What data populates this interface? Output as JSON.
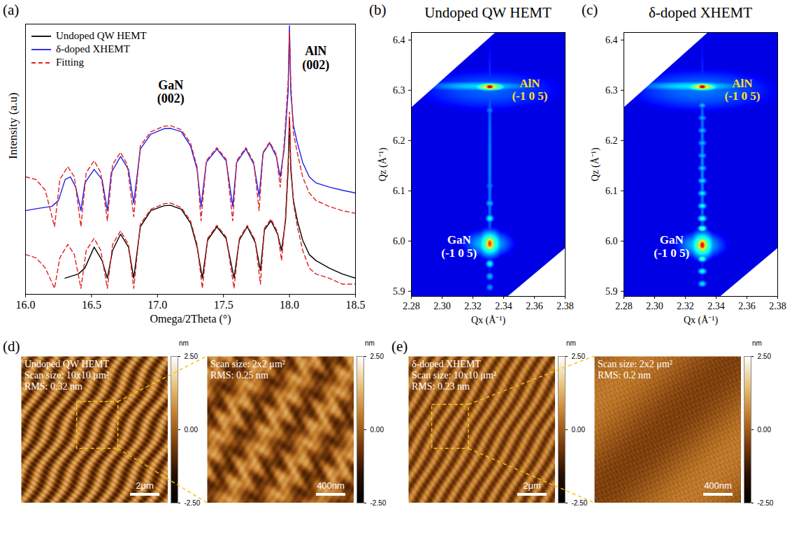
{
  "chart_data": [
    {
      "panel": "(a)",
      "type": "line",
      "xlabel": "Omega/2Theta (°)",
      "ylabel": "Intensity (a.u)",
      "log": "y",
      "tick_labels": "x",
      "legend": "upper left",
      "xlim": [
        16,
        18.5
      ],
      "xticks": [
        {
          "value": 16,
          "label": "16.0"
        },
        16.5,
        {
          "value": 17,
          "label": "17.0"
        },
        17.5,
        {
          "value": 18,
          "label": "18.0"
        },
        18.5
      ],
      "ylim": [
        1,
        100000000
      ],
      "yticks": [],
      "series": [
        {
          "name": "Undoped QW HEMT",
          "color": "#000000",
          "line_style": "solid",
          "x": [
            16.3,
            16.4,
            16.45,
            16.52,
            16.58,
            16.62,
            16.66,
            16.72,
            16.78,
            16.82,
            16.87,
            16.95,
            17.05,
            17.1,
            17.18,
            17.25,
            17.3,
            17.34,
            17.38,
            17.45,
            17.52,
            17.58,
            17.62,
            17.68,
            17.74,
            17.78,
            17.81,
            17.86,
            17.91,
            17.94,
            17.97,
            17.99,
            18.0,
            18.01,
            18.03,
            18.06,
            18.1,
            18.15,
            18.2,
            18.3,
            18.4,
            18.5
          ],
          "values": [
            3,
            4,
            6,
            25,
            10,
            3,
            20,
            60,
            25,
            3,
            100,
            300,
            420,
            430,
            330,
            130,
            25,
            3,
            40,
            100,
            45,
            3,
            40,
            100,
            35,
            5,
            80,
            150,
            60,
            20,
            150,
            5000,
            160000,
            5000,
            600,
            150,
            40,
            15,
            10,
            6,
            4,
            3
          ]
        },
        {
          "name": "δ-doped XHEMT",
          "color": "#1c1cf0",
          "line_style": "solid",
          "x": [
            16.0,
            16.1,
            16.2,
            16.25,
            16.3,
            16.34,
            16.38,
            16.42,
            16.45,
            16.52,
            16.58,
            16.62,
            16.65,
            16.72,
            16.78,
            16.82,
            16.87,
            16.95,
            17.05,
            17.1,
            17.18,
            17.25,
            17.3,
            17.33,
            17.37,
            17.45,
            17.52,
            17.57,
            17.6,
            17.67,
            17.73,
            17.77,
            17.8,
            17.85,
            17.9,
            17.93,
            17.96,
            17.99,
            18.0,
            18.01,
            18.03,
            18.06,
            18.1,
            18.15,
            18.2,
            18.3,
            18.4,
            18.5
          ],
          "values": [
            300,
            350,
            400,
            600,
            2500,
            3000,
            1500,
            300,
            2000,
            5000,
            2500,
            300,
            4000,
            12000,
            5000,
            500,
            20000,
            55000,
            80000,
            82000,
            65000,
            25000,
            5000,
            400,
            8000,
            20000,
            9000,
            400,
            8000,
            20000,
            7000,
            800,
            15000,
            30000,
            12000,
            3000,
            20000,
            1000000,
            90000000,
            1000000,
            100000,
            30000,
            8000,
            3000,
            2000,
            1500,
            1200,
            1000
          ]
        },
        {
          "name": "Fitting",
          "color": "#e02020",
          "line_style": "dashed",
          "x": [
            16.0,
            16.08,
            16.15,
            16.22,
            16.26,
            16.32,
            16.37,
            16.42,
            16.46,
            16.52,
            16.57,
            16.62,
            16.66,
            16.72,
            16.77,
            16.82,
            16.87,
            16.95,
            17.05,
            17.1,
            17.18,
            17.25,
            17.3,
            17.33,
            17.37,
            17.45,
            17.52,
            17.57,
            17.6,
            17.67,
            17.73,
            17.77,
            17.8,
            17.85,
            17.9,
            17.93,
            17.96,
            17.99,
            18.0,
            18.01,
            18.03,
            18.06,
            18.1,
            18.15,
            18.2,
            18.3,
            18.4,
            18.5
          ],
          "values": [
            3000,
            2500,
            1200,
            100,
            2500,
            6000,
            3000,
            100,
            4000,
            9000,
            4000,
            150,
            7000,
            16000,
            7000,
            200,
            25000,
            65000,
            95000,
            98000,
            75000,
            30000,
            6000,
            150,
            9000,
            22000,
            10000,
            150,
            9000,
            22000,
            8000,
            300,
            16000,
            32000,
            14000,
            1500,
            30000,
            2000000,
            60000000,
            2000000,
            60000,
            15000,
            3000,
            1000,
            600,
            400,
            300,
            250
          ]
        },
        {
          "name": "Fitting",
          "color": "#e02020",
          "line_style": "dashed",
          "x": [
            16.0,
            16.08,
            16.15,
            16.22,
            16.26,
            16.32,
            16.37,
            16.42,
            16.46,
            16.52,
            16.57,
            16.62,
            16.66,
            16.72,
            16.78,
            16.82,
            16.87,
            16.95,
            17.05,
            17.1,
            17.18,
            17.25,
            17.3,
            17.34,
            17.38,
            17.45,
            17.52,
            17.58,
            17.62,
            17.68,
            17.74,
            17.78,
            17.81,
            17.86,
            17.91,
            17.94,
            17.97,
            17.99,
            18.0,
            18.01,
            18.03,
            18.06,
            18.1,
            18.15,
            18.2,
            18.3,
            18.4,
            18.5
          ],
          "values": [
            15,
            12,
            6,
            1.5,
            12,
            30,
            15,
            1.5,
            20,
            45,
            20,
            1.5,
            30,
            75,
            30,
            1.5,
            120,
            330,
            480,
            500,
            370,
            150,
            30,
            1.5,
            45,
            110,
            50,
            1.5,
            45,
            110,
            40,
            2,
            90,
            170,
            70,
            10,
            200,
            8000,
            250000,
            8000,
            500,
            100,
            20,
            6,
            4,
            3,
            2,
            2
          ]
        }
      ],
      "annotations": [
        {
          "text": [
            "GaN",
            "(002)"
          ],
          "x": 17.1,
          "y": 1000000
        },
        {
          "text": [
            "AlN",
            "(002)"
          ],
          "x": 18.2,
          "y": 10000000
        }
      ]
    },
    {
      "panel": "(b)",
      "type": "heatmap",
      "title": "Undoped QW HEMT",
      "xlabel": "Qx (Å⁻¹)",
      "ylabel": "Qz (Å⁻¹)",
      "xlim": [
        2.28,
        2.38
      ],
      "xticks": [
        2.28,
        {
          "value": 2.3,
          "label": "2.30"
        },
        2.32,
        2.34,
        2.36,
        2.38
      ],
      "ylim": [
        5.89,
        6.415
      ],
      "yticks": [
        5.9,
        {
          "value": 6,
          "label": "6.0"
        },
        6.1,
        6.2,
        6.3,
        6.4
      ],
      "colorlim": [
        0,
        5
      ],
      "background_intensity": 0.5,
      "scan_edges": {
        "upper": [
          [
            2.28,
            6.265
          ],
          [
            2.335,
            6.415
          ]
        ],
        "lower": [
          [
            2.343,
            5.89
          ],
          [
            2.38,
            5.985
          ]
        ]
      },
      "spots": [
        {
          "qx": 2.33,
          "qz": 6.3,
          "dqx": 0.04,
          "dqz": 0.035,
          "intensity": 1.1
        },
        {
          "qx": 2.325,
          "qz": 6.308,
          "dqx": 0.03,
          "dqz": 0.009,
          "intensity": 1.7
        },
        {
          "qx": 2.331,
          "qz": 6.307,
          "dqx": 0.008,
          "dqz": 0.006,
          "intensity": 3.2
        },
        {
          "qx": 2.331,
          "qz": 6.307,
          "dqx": 0.0025,
          "dqz": 0.004,
          "intensity": 5
        },
        {
          "qx": 2.33,
          "qz": 5.995,
          "dqx": 0.012,
          "dqz": 0.02,
          "intensity": 1.7
        },
        {
          "qx": 2.331,
          "qz": 5.995,
          "dqx": 0.006,
          "dqz": 0.02,
          "intensity": 2.6
        },
        {
          "qx": 2.331,
          "qz": 5.995,
          "dqx": 0.0022,
          "dqz": 0.011,
          "intensity": 4.2
        },
        {
          "qx": 2.331,
          "qz": 6.15,
          "dqx": 0.0012,
          "dqz": 0.2,
          "intensity": 1.3
        },
        {
          "qx": 2.331,
          "qz": 6.045,
          "dqx": 0.002,
          "dqz": 0.006,
          "intensity": 2.0
        },
        {
          "qx": 2.331,
          "qz": 6.075,
          "dqx": 0.002,
          "dqz": 0.006,
          "intensity": 1.6
        },
        {
          "qx": 2.331,
          "qz": 6.11,
          "dqx": 0.002,
          "dqz": 0.006,
          "intensity": 1.3
        },
        {
          "qx": 2.331,
          "qz": 6.26,
          "dqx": 0.002,
          "dqz": 0.006,
          "intensity": 1.3
        },
        {
          "qx": 2.331,
          "qz": 5.955,
          "dqx": 0.002,
          "dqz": 0.006,
          "intensity": 2.0
        },
        {
          "qx": 2.331,
          "qz": 5.93,
          "dqx": 0.002,
          "dqz": 0.006,
          "intensity": 1.6
        },
        {
          "qx": 2.331,
          "qz": 5.908,
          "dqx": 0.002,
          "dqz": 0.006,
          "intensity": 1.4
        }
      ],
      "annotations": [
        {
          "text": [
            "AlN",
            "(-1 0 5)"
          ],
          "qx": 2.357,
          "qz": 6.302,
          "color": "#ffe020"
        },
        {
          "text": [
            "GaN",
            "(-1 0 5)"
          ],
          "qx": 2.311,
          "qz": 5.99,
          "color": "#ffffff"
        }
      ]
    },
    {
      "panel": "(c)",
      "type": "heatmap",
      "title": "δ-doped XHEMT",
      "xlabel": "Qx (Å⁻¹)",
      "ylabel": "Qz (Å⁻¹)",
      "xlim": [
        2.28,
        2.38
      ],
      "xticks": [
        2.28,
        {
          "value": 2.3,
          "label": "2.30"
        },
        2.32,
        2.34,
        2.36,
        2.38
      ],
      "ylim": [
        5.89,
        6.415
      ],
      "yticks": [
        5.9,
        {
          "value": 6,
          "label": "6.0"
        },
        6.1,
        6.2,
        6.3,
        6.4
      ],
      "colorlim": [
        0,
        5
      ],
      "background_intensity": 0.5,
      "scan_edges": {
        "upper": [
          [
            2.28,
            6.265
          ],
          [
            2.335,
            6.415
          ]
        ],
        "lower": [
          [
            2.343,
            5.89
          ],
          [
            2.38,
            5.985
          ]
        ]
      },
      "spots": [
        {
          "qx": 2.33,
          "qz": 6.3,
          "dqx": 0.04,
          "dqz": 0.035,
          "intensity": 1.2
        },
        {
          "qx": 2.325,
          "qz": 6.308,
          "dqx": 0.03,
          "dqz": 0.009,
          "intensity": 1.8
        },
        {
          "qx": 2.331,
          "qz": 6.307,
          "dqx": 0.008,
          "dqz": 0.006,
          "intensity": 3.2
        },
        {
          "qx": 2.331,
          "qz": 6.307,
          "dqx": 0.0025,
          "dqz": 0.004,
          "intensity": 5
        },
        {
          "qx": 2.33,
          "qz": 5.992,
          "dqx": 0.012,
          "dqz": 0.02,
          "intensity": 1.7
        },
        {
          "qx": 2.331,
          "qz": 5.992,
          "dqx": 0.006,
          "dqz": 0.02,
          "intensity": 2.7
        },
        {
          "qx": 2.331,
          "qz": 5.992,
          "dqx": 0.0022,
          "dqz": 0.01,
          "intensity": 4.5
        },
        {
          "qx": 2.331,
          "qz": 6.15,
          "dqx": 0.0012,
          "dqz": 0.2,
          "intensity": 1.3
        },
        {
          "qx": 2.331,
          "qz": 6.27,
          "dqx": 0.0022,
          "dqz": 0.005,
          "intensity": 1.6
        },
        {
          "qx": 2.331,
          "qz": 6.245,
          "dqx": 0.0022,
          "dqz": 0.005,
          "intensity": 1.5
        },
        {
          "qx": 2.331,
          "qz": 6.22,
          "dqx": 0.0022,
          "dqz": 0.005,
          "intensity": 1.6
        },
        {
          "qx": 2.331,
          "qz": 6.195,
          "dqx": 0.0022,
          "dqz": 0.005,
          "intensity": 1.6
        },
        {
          "qx": 2.331,
          "qz": 6.17,
          "dqx": 0.0022,
          "dqz": 0.005,
          "intensity": 1.6
        },
        {
          "qx": 2.331,
          "qz": 6.145,
          "dqx": 0.0022,
          "dqz": 0.005,
          "intensity": 1.7
        },
        {
          "qx": 2.331,
          "qz": 6.12,
          "dqx": 0.0022,
          "dqz": 0.005,
          "intensity": 1.8
        },
        {
          "qx": 2.331,
          "qz": 6.095,
          "dqx": 0.0022,
          "dqz": 0.005,
          "intensity": 1.9
        },
        {
          "qx": 2.331,
          "qz": 6.07,
          "dqx": 0.0022,
          "dqz": 0.005,
          "intensity": 2.0
        },
        {
          "qx": 2.331,
          "qz": 6.045,
          "dqx": 0.0022,
          "dqz": 0.005,
          "intensity": 2.2
        },
        {
          "qx": 2.331,
          "qz": 6.025,
          "dqx": 0.0022,
          "dqz": 0.005,
          "intensity": 2.4
        },
        {
          "qx": 2.331,
          "qz": 5.965,
          "dqx": 0.0022,
          "dqz": 0.005,
          "intensity": 2.4
        },
        {
          "qx": 2.331,
          "qz": 5.94,
          "dqx": 0.0022,
          "dqz": 0.005,
          "intensity": 2.0
        },
        {
          "qx": 2.331,
          "qz": 5.915,
          "dqx": 0.0022,
          "dqz": 0.005,
          "intensity": 1.8
        }
      ],
      "annotations": [
        {
          "text": [
            "AlN",
            "(-1 0 5)"
          ],
          "qx": 2.357,
          "qz": 6.302,
          "color": "#ffe020"
        },
        {
          "text": [
            "GaN",
            "(-1 0 5)"
          ],
          "qx": 2.311,
          "qz": 5.99,
          "color": "#ffffff"
        }
      ]
    }
  ],
  "afm_panels": [
    {
      "panel": "(d)",
      "images": [
        {
          "lines": [
            "Undoped QW HEMT",
            "Scan size: 10x10 μm²",
            "RMS: 0.32 nm"
          ],
          "scan_size": 10,
          "scale_bar": {
            "label": "2μm",
            "length": 2
          },
          "zoom_region": {
            "x": [
              3.8,
              6.6
            ],
            "y": [
              3.1,
              6.3
            ]
          },
          "colorbar": {
            "unit": "nm",
            "range": [
              -2.5,
              2.5
            ],
            "ticks": [
              {
                "value": 2.5,
                "label": "2.50"
              },
              {
                "value": 0,
                "label": "0.00"
              },
              {
                "value": -2.5,
                "label": "-2.50"
              }
            ]
          }
        },
        {
          "lines": [
            "Scan size: 2x2 μm²",
            "RMS: 0.25 nm"
          ],
          "scan_size": 2,
          "scale_bar": {
            "label": "400nm",
            "length": 0.4
          },
          "colorbar": {
            "unit": "nm",
            "range": [
              -2.5,
              2.5
            ],
            "ticks": [
              {
                "value": 2.5,
                "label": "2.50"
              },
              {
                "value": 0,
                "label": "0.00"
              },
              {
                "value": -2.5,
                "label": "-2.50"
              }
            ]
          }
        }
      ]
    },
    {
      "panel": "(e)",
      "images": [
        {
          "lines": [
            "δ-doped XHEMT",
            "Scan size: 10x10 μm²",
            "RMS: 0.23 nm"
          ],
          "scan_size": 10,
          "scale_bar": {
            "label": "2μm",
            "length": 2
          },
          "zoom_region": {
            "x": [
              1.6,
              4.1
            ],
            "y": [
              3.3,
              6.3
            ]
          },
          "colorbar": {
            "unit": "nm",
            "range": [
              -2.5,
              2.5
            ],
            "ticks": [
              {
                "value": 2.5,
                "label": "2.50"
              },
              {
                "value": 0,
                "label": "0.00"
              },
              {
                "value": -2.5,
                "label": "-2.50"
              }
            ]
          }
        },
        {
          "lines": [
            "Scan size: 2x2 μm²",
            "RMS: 0.2 nm"
          ],
          "scan_size": 2,
          "scale_bar": {
            "label": "400nm",
            "length": 0.4
          },
          "colorbar": {
            "unit": "nm",
            "range": [
              -2.5,
              2.5
            ],
            "ticks": [
              {
                "value": 2.5,
                "label": "2.50"
              },
              {
                "value": 0,
                "label": "0.00"
              },
              {
                "value": -2.5,
                "label": "-2.50"
              }
            ]
          }
        }
      ]
    }
  ]
}
